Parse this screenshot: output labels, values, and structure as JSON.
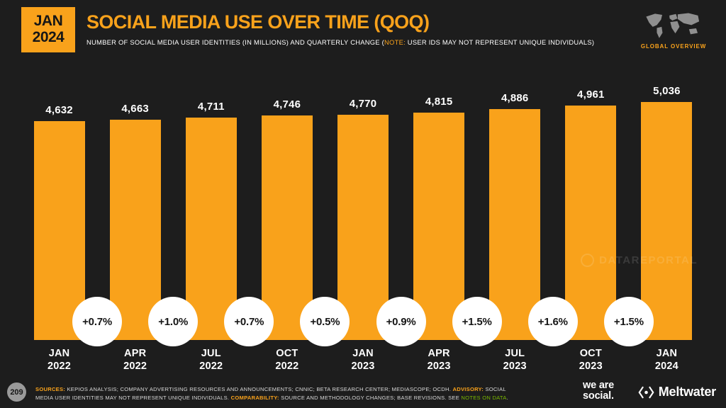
{
  "header": {
    "date_badge": {
      "line1": "JAN",
      "line2": "2024"
    },
    "title": "SOCIAL MEDIA USE OVER TIME (QOQ)",
    "subtitle_prefix": "NUMBER OF SOCIAL MEDIA USER IDENTITIES (IN MILLIONS) AND QUARTERLY CHANGE (",
    "subtitle_note": "NOTE:",
    "subtitle_suffix": " USER IDS MAY NOT REPRESENT UNIQUE INDIVIDUALS)",
    "region_label": "GLOBAL OVERVIEW"
  },
  "watermark": "DATAREPORTAL",
  "chart_data": {
    "type": "bar",
    "title": "SOCIAL MEDIA USE OVER TIME (QOQ)",
    "unit": "millions of social media user identities",
    "categories": [
      "JAN 2022",
      "APR 2022",
      "JUL 2022",
      "OCT 2022",
      "JAN 2023",
      "APR 2023",
      "JUL 2023",
      "OCT 2023",
      "JAN 2024"
    ],
    "values": [
      4632,
      4663,
      4711,
      4746,
      4770,
      4815,
      4886,
      4961,
      5036
    ],
    "value_labels": [
      "4,632",
      "4,663",
      "4,711",
      "4,746",
      "4,770",
      "4,815",
      "4,886",
      "4,961",
      "5,036"
    ],
    "qoq_change_labels": [
      "+0.7%",
      "+1.0%",
      "+0.7%",
      "+0.5%",
      "+0.9%",
      "+1.5%",
      "+1.6%",
      "+1.5%"
    ],
    "ylim": [
      0,
      5036
    ],
    "bar_color": "#f9a21b",
    "grid": false,
    "legend": "none"
  },
  "footer": {
    "page_number": "209",
    "notes_segments": [
      {
        "text": "SOURCES:",
        "style": "orange"
      },
      {
        "text": " KEPIOS ANALYSIS; COMPANY ADVERTISING RESOURCES AND ANNOUNCEMENTS; CNNIC; BETA RESEARCH CENTER; MEDIASCOPE; OCDH. ",
        "style": ""
      },
      {
        "text": "ADVISORY:",
        "style": "orange"
      },
      {
        "text": " SOCIAL MEDIA USER IDENTITIES MAY NOT REPRESENT UNIQUE INDIVIDUALS. ",
        "style": ""
      },
      {
        "text": "COMPARABILITY:",
        "style": "orange"
      },
      {
        "text": " SOURCE AND METHODOLOGY CHANGES; BASE REVISIONS. SEE ",
        "style": ""
      },
      {
        "text": "NOTES ON DATA",
        "style": "green"
      },
      {
        "text": ".",
        "style": ""
      }
    ],
    "wearesocial_line1": "we are",
    "wearesocial_line2": "social.",
    "meltwater_label": "Meltwater"
  }
}
